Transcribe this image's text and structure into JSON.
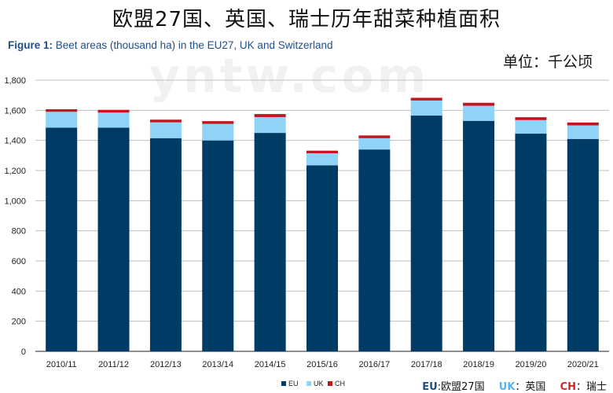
{
  "header": {
    "title": "欧盟27国、英国、瑞士历年甜菜种植面积",
    "figure_label": "Figure 1:",
    "figure_caption": "Beet areas (thousand ha) in the EU27, UK and Switzerland",
    "unit": "单位：千公顷",
    "watermark": "yntw.com"
  },
  "bottom_legend": {
    "eu_code": "EU",
    "eu_name": ":欧盟27国",
    "uk_code": "UK",
    "uk_name": "：英国",
    "ch_code": "CH",
    "ch_name": "：瑞士"
  },
  "colors": {
    "EU": "#003b66",
    "UK": "#8fd3f7",
    "CH": "#c0161d",
    "grid": "#bfbfbf",
    "axis": "#222222"
  },
  "chart_data": {
    "type": "bar",
    "stacked": true,
    "categories": [
      "2010/11",
      "2011/12",
      "2012/13",
      "2013/14",
      "2014/15",
      "2015/16",
      "2016/17",
      "2017/18",
      "2018/19",
      "2019/20",
      "2020/21"
    ],
    "series": [
      {
        "name": "EU",
        "values": [
          1485,
          1485,
          1415,
          1400,
          1450,
          1235,
          1340,
          1565,
          1530,
          1445,
          1410
        ]
      },
      {
        "name": "UK",
        "values": [
          105,
          100,
          105,
          110,
          105,
          80,
          75,
          100,
          100,
          90,
          90
        ]
      },
      {
        "name": "CH",
        "values": [
          17,
          18,
          18,
          18,
          20,
          17,
          18,
          18,
          20,
          19,
          19
        ]
      }
    ],
    "y_ticks": [
      "0",
      "200",
      "400",
      "600",
      "800",
      "1,000",
      "1,200",
      "1,400",
      "1,600",
      "1,800"
    ],
    "ylim": [
      0,
      1800
    ],
    "grid": true,
    "legend_position": "bottom",
    "title": "Beet areas (thousand ha) in the EU27, UK and Switzerland",
    "xlabel": "",
    "ylabel": ""
  }
}
